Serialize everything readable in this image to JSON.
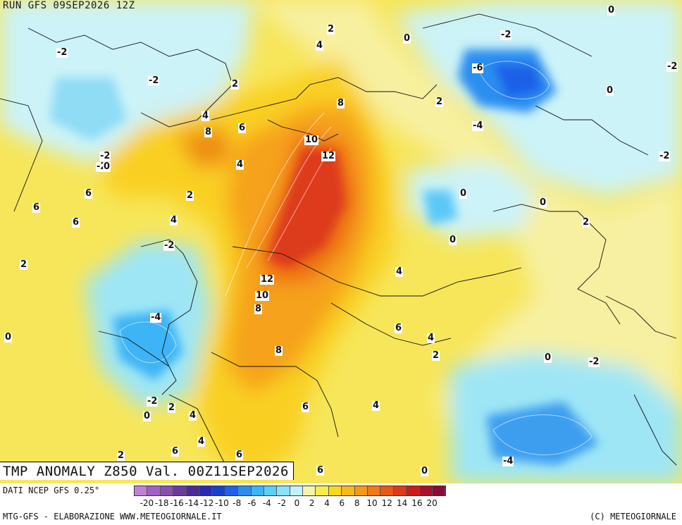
{
  "header": {
    "run_label": "RUN GFS 09SEP2026 12Z"
  },
  "title": "TMP ANOMALY Z850 Val. 00Z11SEP2026",
  "footer": {
    "data_source": "DATI NCEP GFS 0.25°",
    "credit": "MTG-GFS - ELABORAZIONE WWW.METEOGIORNALE.IT",
    "copyright": "(C) METEOGIORNALE"
  },
  "colorbar": {
    "ticks": [
      "-20",
      "-18",
      "-16",
      "-14",
      "-12",
      "-10",
      "-8",
      "-6",
      "-4",
      "-2",
      "0",
      "2",
      "4",
      "6",
      "8",
      "10",
      "12",
      "14",
      "16",
      "20"
    ],
    "colors": [
      "#c080d8",
      "#a060c8",
      "#8850b0",
      "#6a3aa0",
      "#4a2a98",
      "#2a2ab0",
      "#1a40d0",
      "#1f60e8",
      "#2a8ef0",
      "#3cb4f5",
      "#5ccff8",
      "#8ce2f8",
      "#bff2fa",
      "#f5f5a8",
      "#f7ec4a",
      "#f9d81e",
      "#f7b81a",
      "#f59a18",
      "#f07a18",
      "#e85818",
      "#dc3a1a",
      "#c81e1a",
      "#a8102a",
      "#8a0a38"
    ]
  },
  "contour_labels": [
    "-2",
    "2",
    "4",
    "0",
    "-2",
    "0",
    "-2",
    "-2",
    "2",
    "-6",
    "-2",
    "8",
    "2",
    "4",
    "6",
    "8",
    "10",
    "12",
    "-4",
    "-2",
    "-2",
    "0",
    "6",
    "4",
    "6",
    "2",
    "0",
    "0",
    "6",
    "4",
    "0",
    "2",
    "0",
    "-2",
    "2",
    "12",
    "10",
    "4",
    "8",
    "-4",
    "6",
    "0",
    "4",
    "8",
    "2",
    "0",
    "-2",
    "-2",
    "0",
    "2",
    "4",
    "6",
    "4",
    "4",
    "2",
    "6",
    "6",
    "-4",
    "6",
    "0"
  ]
}
